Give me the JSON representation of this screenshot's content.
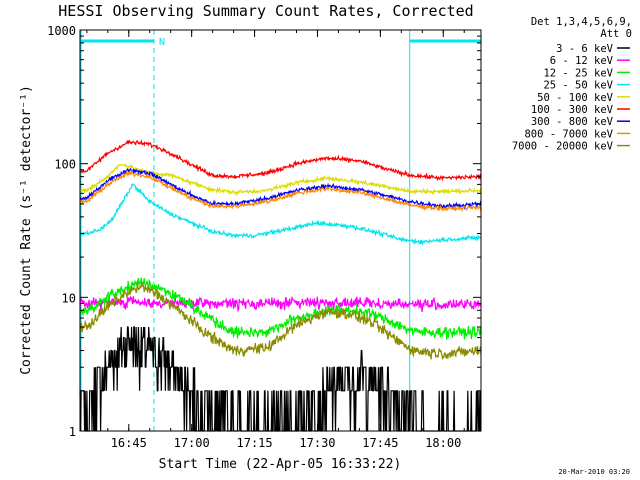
{
  "colors": {
    "background": "#ffffff",
    "axes": "#000000",
    "night_marker": "#00e5ee"
  },
  "chart_data": {
    "type": "line",
    "title": "HESSI Observing Summary Count Rates, Corrected",
    "xlabel": "Start Time (22-Apr-05 16:33:22)",
    "ylabel": "Corrected Count Rate (s⁻¹ detector⁻¹)",
    "timestamp": "20-Mar-2010 03:20",
    "y_scale": "log",
    "ylim": [
      1,
      1000
    ],
    "xlim": [
      "16:33:22",
      "18:09:00"
    ],
    "x_ticks": [
      "16:45",
      "17:00",
      "17:15",
      "17:30",
      "17:45",
      "18:00"
    ],
    "y_ticks": [
      "1",
      "10",
      "100",
      "1000"
    ],
    "legend": {
      "position": "right",
      "header": [
        "Det 1,3,4,5,6,9,",
        "Att 0"
      ]
    },
    "annotations": {
      "saa_label": "N",
      "night_intervals": [
        [
          "16:33:22",
          "16:51:00"
        ],
        [
          "17:52:00",
          "18:09:00"
        ]
      ],
      "dashed_markers": [
        "16:51:00",
        "18:09:00"
      ]
    },
    "series": [
      {
        "name": "3 - 6 keV",
        "color": "#000000",
        "noise": "binary",
        "x": [
          "16:35",
          "16:40",
          "16:45",
          "16:50",
          "16:55",
          "17:00",
          "17:05",
          "17:10",
          "17:20",
          "17:30",
          "17:35",
          "17:40",
          "17:45",
          "17:50",
          "17:55",
          "18:00",
          "18:09"
        ],
        "y": [
          1.5,
          3,
          5,
          4,
          3,
          2,
          1.4,
          1.2,
          1.2,
          1.6,
          2.2,
          2.6,
          2.2,
          1.6,
          1.2,
          1.2,
          1.2
        ]
      },
      {
        "name": "6 - 12 keV",
        "color": "#ff00ff",
        "noise": "normal",
        "x": [
          "16:35",
          "16:45",
          "16:55",
          "17:05",
          "17:15",
          "17:30",
          "17:45",
          "18:00",
          "18:09"
        ],
        "y": [
          9,
          9.3,
          9,
          9,
          9,
          9.2,
          9,
          8.8,
          8.8
        ]
      },
      {
        "name": "12 - 25 keV",
        "color": "#00ee00",
        "noise": "normal",
        "x": [
          "16:35",
          "16:40",
          "16:45",
          "16:48",
          "16:52",
          "16:58",
          "17:03",
          "17:10",
          "17:18",
          "17:25",
          "17:32",
          "17:38",
          "17:43",
          "17:48",
          "17:53",
          "18:00",
          "18:09"
        ],
        "y": [
          8,
          10,
          12,
          13,
          12,
          9.5,
          7.5,
          5.5,
          5.5,
          7,
          8,
          8,
          7.5,
          6.5,
          5.5,
          5.5,
          5.5
        ]
      },
      {
        "name": "25 - 50 keV",
        "color": "#00e5ee",
        "noise": "normal",
        "x": [
          "16:35",
          "16:38",
          "16:41",
          "16:44",
          "16:46",
          "16:50",
          "16:55",
          "17:00",
          "17:05",
          "17:10",
          "17:15",
          "17:20",
          "17:30",
          "17:38",
          "17:45",
          "17:50",
          "17:55",
          "18:00",
          "18:09"
        ],
        "y": [
          30,
          32,
          38,
          55,
          70,
          52,
          42,
          36,
          31,
          29,
          29,
          31,
          36,
          34,
          30,
          27,
          26,
          27,
          28
        ]
      },
      {
        "name": "50 - 100 keV",
        "color": "#dddd00",
        "noise": "normal",
        "x": [
          "16:35",
          "16:40",
          "16:43",
          "16:46",
          "16:50",
          "16:55",
          "17:00",
          "17:05",
          "17:10",
          "17:18",
          "17:25",
          "17:32",
          "17:40",
          "17:47",
          "17:52",
          "18:00",
          "18:09"
        ],
        "y": [
          63,
          80,
          100,
          93,
          85,
          82,
          72,
          64,
          61,
          63,
          72,
          78,
          73,
          67,
          62,
          62,
          63
        ]
      },
      {
        "name": "100 - 300 keV",
        "color": "#ff0000",
        "noise": "normal",
        "x": [
          "16:35",
          "16:40",
          "16:45",
          "16:50",
          "16:55",
          "17:00",
          "17:05",
          "17:10",
          "17:18",
          "17:25",
          "17:32",
          "17:40",
          "17:47",
          "17:52",
          "18:00",
          "18:09"
        ],
        "y": [
          88,
          120,
          145,
          140,
          120,
          98,
          82,
          80,
          85,
          100,
          110,
          105,
          90,
          82,
          78,
          80
        ]
      },
      {
        "name": "300 - 800 keV",
        "color": "#0000ff",
        "noise": "normal",
        "x": [
          "16:35",
          "16:40",
          "16:45",
          "16:50",
          "16:55",
          "17:00",
          "17:05",
          "17:10",
          "17:18",
          "17:25",
          "17:32",
          "17:40",
          "17:47",
          "17:52",
          "18:00",
          "18:09"
        ],
        "y": [
          55,
          75,
          90,
          85,
          70,
          58,
          50,
          50,
          55,
          63,
          68,
          64,
          57,
          52,
          48,
          50
        ]
      },
      {
        "name": "800 - 7000 keV",
        "color": "#ff8800",
        "noise": "normal",
        "x": [
          "16:35",
          "16:40",
          "16:45",
          "16:50",
          "16:55",
          "17:00",
          "17:05",
          "17:10",
          "17:18",
          "17:25",
          "17:32",
          "17:40",
          "17:47",
          "17:52",
          "18:00",
          "18:09"
        ],
        "y": [
          52,
          70,
          85,
          80,
          66,
          55,
          48,
          48,
          52,
          60,
          65,
          61,
          54,
          49,
          46,
          47
        ]
      },
      {
        "name": "7000 - 20000 keV",
        "color": "#8b8b00",
        "noise": "normal",
        "x": [
          "16:35",
          "16:40",
          "16:45",
          "16:48",
          "16:52",
          "16:58",
          "17:03",
          "17:10",
          "17:18",
          "17:25",
          "17:32",
          "17:38",
          "17:43",
          "17:48",
          "17:53",
          "18:00",
          "18:09"
        ],
        "y": [
          6,
          8.5,
          11,
          12,
          10.5,
          7.5,
          5.5,
          4,
          4.2,
          6.2,
          7.8,
          7.5,
          6.5,
          5,
          4,
          3.8,
          4
        ]
      }
    ]
  }
}
